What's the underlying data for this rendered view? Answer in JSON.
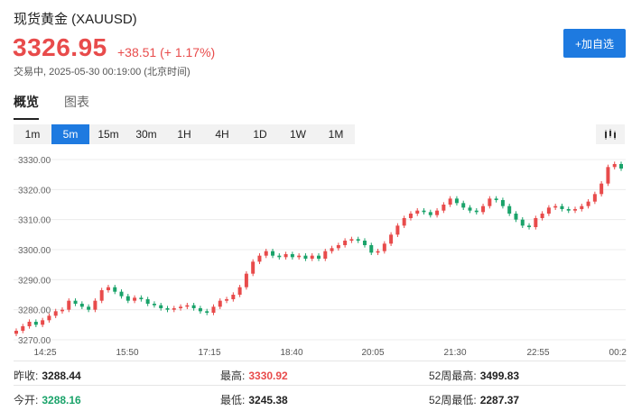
{
  "header": {
    "title": "现货黄金  (XAUUSD)",
    "price": "3326.95",
    "change": "+38.51  (+ 1.17%)",
    "status": "交易中, 2025-05-30 00:19:00 (北京时间)",
    "add_label": "+加自选"
  },
  "tabs": [
    {
      "label": "概览",
      "active": true
    },
    {
      "label": "图表",
      "active": false
    }
  ],
  "periods": [
    {
      "label": "1m",
      "active": false
    },
    {
      "label": "5m",
      "active": true
    },
    {
      "label": "15m",
      "active": false
    },
    {
      "label": "30m",
      "active": false
    },
    {
      "label": "1H",
      "active": false
    },
    {
      "label": "4H",
      "active": false
    },
    {
      "label": "1D",
      "active": false
    },
    {
      "label": "1W",
      "active": false
    },
    {
      "label": "1M",
      "active": false
    }
  ],
  "colors": {
    "up": "#e84b4b",
    "down": "#1aa36a",
    "accent": "#1e7ae0"
  },
  "chart_data": {
    "type": "candlestick",
    "interval": "5m",
    "y_ticks": [
      "3330.00",
      "3320.00",
      "3310.00",
      "3300.00",
      "3290.00",
      "3280.00",
      "3270.00"
    ],
    "ylim": [
      3270,
      3330
    ],
    "x_ticks": [
      "14:25",
      "15:50",
      "17:15",
      "18:40",
      "20:05",
      "21:30",
      "22:55",
      "00:2"
    ],
    "closes": [
      3273.0,
      3274.5,
      3276.0,
      3275.0,
      3276.5,
      3278.0,
      3279.5,
      3280.0,
      3283.0,
      3282.0,
      3281.0,
      3280.0,
      3283.0,
      3286.5,
      3287.5,
      3286.0,
      3284.5,
      3283.0,
      3284.0,
      3283.5,
      3282.0,
      3281.5,
      3280.5,
      3280.0,
      3280.5,
      3281.0,
      3281.5,
      3280.5,
      3279.5,
      3279.0,
      3281.0,
      3283.0,
      3283.5,
      3285.0,
      3287.5,
      3292.0,
      3296.0,
      3298.0,
      3299.5,
      3298.0,
      3297.5,
      3298.5,
      3297.5,
      3298.0,
      3297.0,
      3298.0,
      3297.0,
      3299.5,
      3300.5,
      3301.5,
      3303.0,
      3303.5,
      3303.0,
      3301.5,
      3299.0,
      3299.5,
      3302.0,
      3305.0,
      3308.0,
      3310.5,
      3312.0,
      3313.0,
      3312.5,
      3311.5,
      3313.0,
      3315.0,
      3317.0,
      3315.5,
      3314.0,
      3313.0,
      3312.5,
      3314.5,
      3317.0,
      3316.5,
      3314.5,
      3312.0,
      3310.0,
      3308.0,
      3307.5,
      3310.5,
      3312.0,
      3314.0,
      3314.5,
      3313.5,
      3313.0,
      3313.5,
      3314.5,
      3316.0,
      3318.5,
      3322.0,
      3327.5,
      3328.5,
      3327.0
    ],
    "summary": {
      "prev_close": "3288.44",
      "open": "3288.16",
      "high": "3330.92",
      "low": "3245.38",
      "high_52w": "3499.83",
      "low_52w": "2287.37"
    }
  },
  "stats": [
    [
      {
        "label": "昨收:",
        "value": "3288.44",
        "tone": ""
      },
      {
        "label": "最高:",
        "value": "3330.92",
        "tone": "red"
      },
      {
        "label": "52周最高:",
        "value": "3499.83",
        "tone": ""
      }
    ],
    [
      {
        "label": "今开:",
        "value": "3288.16",
        "tone": "green"
      },
      {
        "label": "最低:",
        "value": "3245.38",
        "tone": ""
      },
      {
        "label": "52周最低:",
        "value": "2287.37",
        "tone": ""
      }
    ]
  ]
}
